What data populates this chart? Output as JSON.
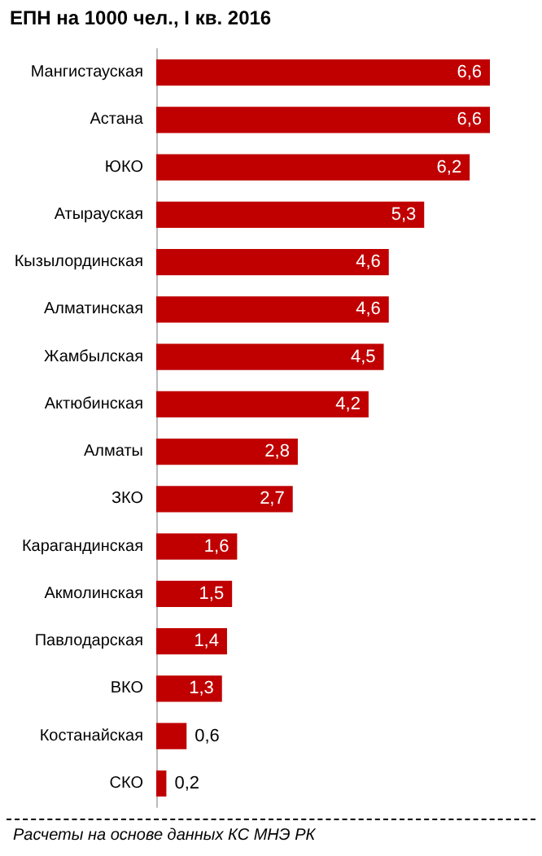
{
  "chart_data": {
    "type": "bar",
    "orientation": "horizontal",
    "title": "ЕПН на 1000 чел., I кв. 2016",
    "categories": [
      "Мангистауская",
      "Астана",
      "ЮКО",
      "Атырауская",
      "Кызылординская",
      "Алматинская",
      "Жамбылская",
      "Актюбинская",
      "Алматы",
      "ЗКО",
      "Карагандинская",
      "Акмолинская",
      "Павлодарская",
      "ВКО",
      "Костанайская",
      "СКО"
    ],
    "values": [
      6.6,
      6.6,
      6.2,
      5.3,
      4.6,
      4.6,
      4.5,
      4.2,
      2.8,
      2.7,
      1.6,
      1.5,
      1.4,
      1.3,
      0.6,
      0.2
    ],
    "value_labels": [
      "6,6",
      "6,6",
      "6,2",
      "5,3",
      "4,6",
      "4,6",
      "4,5",
      "4,2",
      "2,8",
      "2,7",
      "1,6",
      "1,5",
      "1,4",
      "1,3",
      "0,6",
      "0,2"
    ],
    "color": "#c00000",
    "annotations": [
      "Расчеты на основе данных КС МНЭ РК"
    ]
  }
}
